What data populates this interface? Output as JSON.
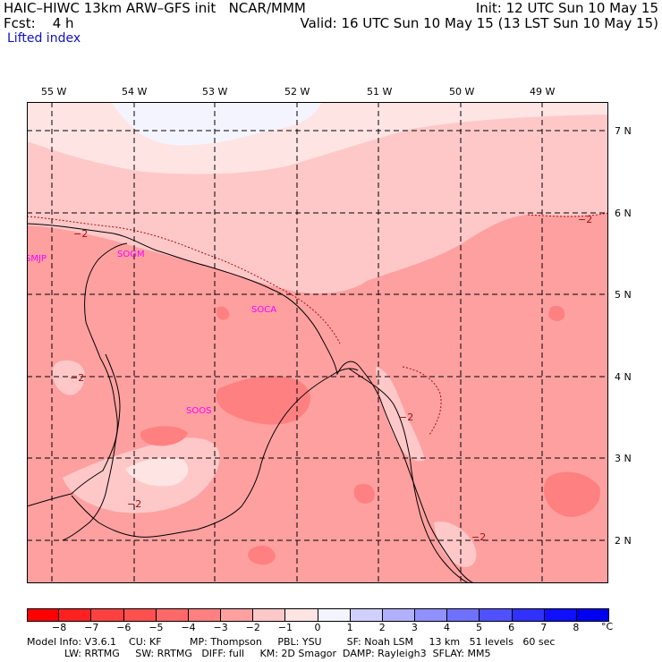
{
  "header": {
    "title": "HAIC–HIWC 13km ARW–GFS init   NCAR/MMM",
    "init": "Init: 12 UTC Sun 10 May 15",
    "fcst": "Fcst:    4 h",
    "valid": "Valid: 16 UTC Sun 10 May 15 (13 LST Sun 10 May 15)",
    "field": "Lifted index"
  },
  "map": {
    "longitudes": [
      "55 W",
      "54 W",
      "53 W",
      "52 W",
      "51 W",
      "50 W",
      "49 W"
    ],
    "latitudes": [
      "7 N",
      "6 N",
      "5 N",
      "4 N",
      "3 N",
      "2 N"
    ],
    "stations": [
      "SMJP",
      "SOGM",
      "SOCA",
      "SOOS"
    ],
    "contour_label": "−2"
  },
  "colorbar": {
    "ticks": [
      "−8",
      "−7",
      "−6",
      "−5",
      "−4",
      "−3",
      "−2",
      "−1",
      "0",
      "1",
      "2",
      "3",
      "4",
      "5",
      "6",
      "7",
      "8"
    ],
    "unit": "°C",
    "colors": [
      "#ff0000",
      "#ff2020",
      "#ff4040",
      "#ff5050",
      "#ff6868",
      "#ff8080",
      "#ffa0a0",
      "#ffc8c8",
      "#ffe4e4",
      "#f4f4ff",
      "#d0d0ff",
      "#b0b0ff",
      "#9090ff",
      "#7070ff",
      "#5050ff",
      "#3030ff",
      "#1010ff",
      "#0000f0"
    ]
  },
  "footer": {
    "line1": "Model Info: V3.6.1    CU: KF         MP: Thompson     PBL: YSU        SF: Noah LSM     13 km   51 levels   60 sec",
    "line2": "            LW: RRTMG     SW: RRTMG   DIFF: full     KM: 2D Smagor  DAMP: Rayleigh3  SFLAY: MM5"
  }
}
